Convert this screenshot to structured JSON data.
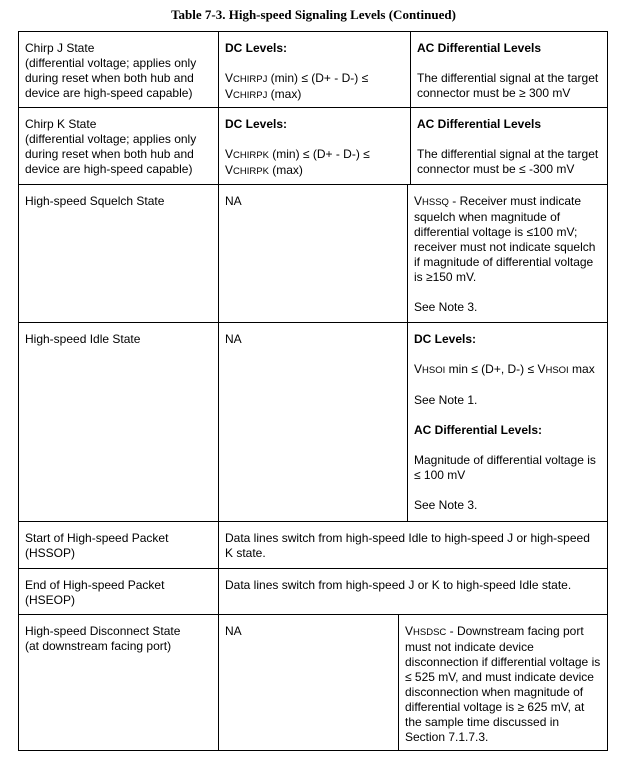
{
  "title": "Table 7-3.  High-speed Signaling Levels (Continued)",
  "rows": [
    {
      "state": "Chirp J State",
      "desc": "(differential voltage; applies only during reset when both hub and device are high-speed capable)",
      "dc_heading": "DC Levels:",
      "dc_v": "V",
      "dc_sub": "CHIRPJ",
      "dc_text": " (min) ≤ (D+ - D-) ≤",
      "dc_v2": "V",
      "dc_sub2": "CHIRPJ",
      "dc_text2": " (max)",
      "ac_heading": "AC Differential Levels",
      "ac_text": "The differential signal at the target connector must be ≥ 300 mV"
    },
    {
      "state": "Chirp K State",
      "desc": "(differential voltage; applies only during reset when both hub and device are high-speed capable)",
      "dc_heading": "DC Levels:",
      "dc_v": "V",
      "dc_sub": "CHIRPK",
      "dc_text": " (min) ≤ (D+ - D-) ≤",
      "dc_v2": "V",
      "dc_sub2": "CHIRPK",
      "dc_text2": " (max)",
      "ac_heading": "AC Differential Levels",
      "ac_text": "The differential signal at the target connector must be ≤ -300 mV"
    },
    {
      "state": "High-speed Squelch State",
      "dc": "NA",
      "v": "V",
      "sub": "HSSQ",
      "text": " - Receiver must indicate squelch when magnitude of differential voltage is ≤100 mV; receiver must not indicate squelch if magnitude of differential voltage is ≥150 mV.",
      "note": "See Note 3."
    },
    {
      "state": "High-speed Idle State",
      "dc": "NA",
      "dc_heading": "DC Levels:",
      "v": "V",
      "sub": "HSOI",
      "mid": " min ≤ (D+, D-) ≤ ",
      "v2": "V",
      "sub2": "HSOI",
      "end": " max",
      "note1": "See Note 1.",
      "ac_heading": "AC Differential Levels:",
      "ac_text": "Magnitude of differential voltage is ≤ 100 mV",
      "note3": "See Note 3."
    },
    {
      "state": "Start of High-speed Packet (HSSOP)",
      "text": "Data lines switch from high-speed Idle to high-speed J or high-speed K state."
    },
    {
      "state": "End of High-speed Packet (HSEOP)",
      "text": "Data lines switch from high-speed J or K to high-speed Idle state."
    },
    {
      "state": "High-speed Disconnect State",
      "desc": "(at downstream facing port)",
      "dc": "NA",
      "v": "V",
      "sub": "HSDSC",
      "text": " - Downstream facing port must not indicate device disconnection if differential voltage is ≤ 525 mV, and must indicate device disconnection when magnitude of differential voltage is ≥ 625 mV, at the sample time discussed in Section 7.1.7.3."
    }
  ]
}
